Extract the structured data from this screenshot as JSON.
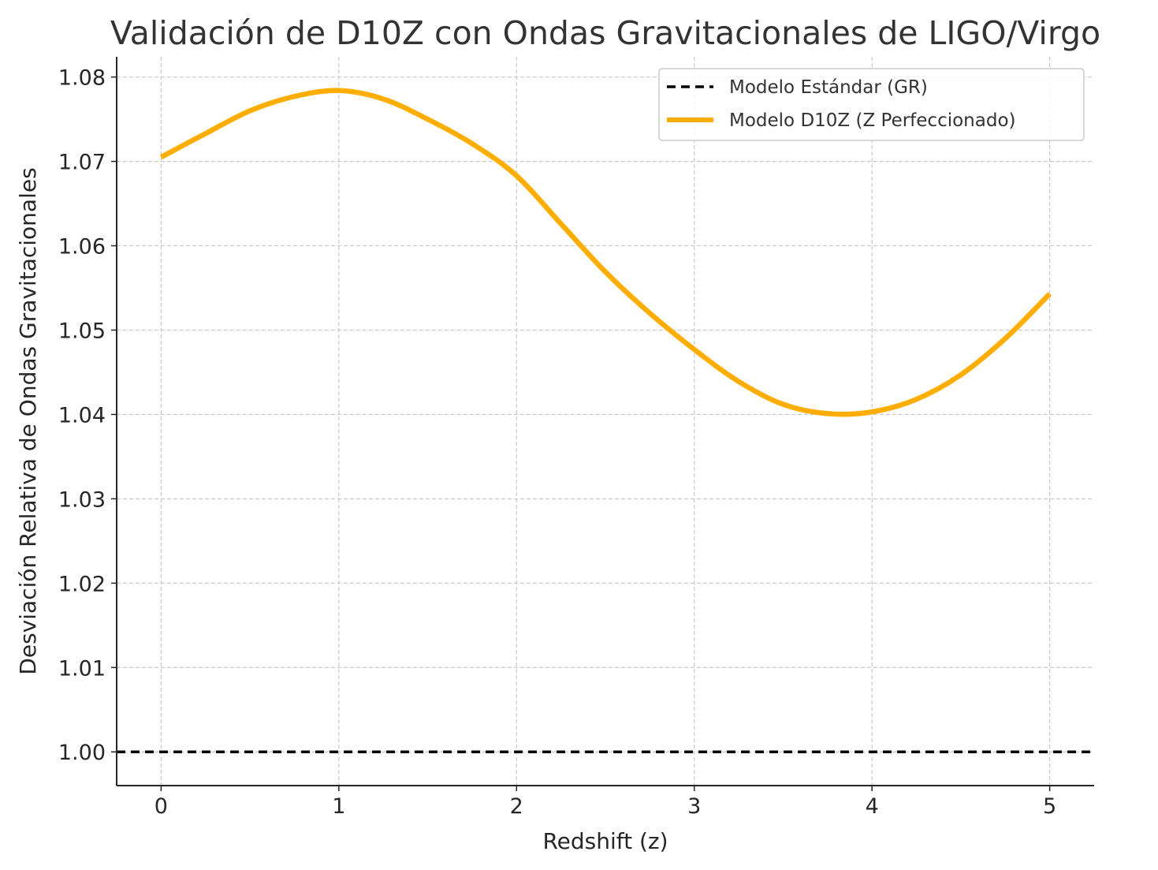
{
  "chart_data": {
    "type": "line",
    "title": "Validación de D10Z con Ondas Gravitacionales de LIGO/Virgo",
    "xlabel": "Redshift (z)",
    "ylabel": "Desviación Relativa de Ondas Gravitacionales",
    "xlim": [
      -0.25,
      5.25
    ],
    "ylim": [
      0.996,
      1.0824
    ],
    "x_ticks": [
      0,
      1,
      2,
      3,
      4,
      5
    ],
    "x_tick_labels": [
      "0",
      "1",
      "2",
      "3",
      "4",
      "5"
    ],
    "y_ticks": [
      1.0,
      1.01,
      1.02,
      1.03,
      1.04,
      1.05,
      1.06,
      1.07,
      1.08
    ],
    "y_tick_labels": [
      "1.00",
      "1.01",
      "1.02",
      "1.03",
      "1.04",
      "1.05",
      "1.06",
      "1.07",
      "1.08"
    ],
    "grid": true,
    "legend_position": "top-right",
    "series": [
      {
        "name": "Modelo Estándar (GR)",
        "color": "#000000",
        "style": "dashed",
        "x": [
          -0.25,
          5.25
        ],
        "y": [
          1.0,
          1.0
        ]
      },
      {
        "name": "Modelo D10Z (Z Perfeccionado)",
        "color": "#ffae00",
        "style": "solid",
        "x": [
          0.0,
          0.25,
          0.5,
          0.75,
          1.0,
          1.25,
          1.5,
          1.75,
          2.0,
          2.25,
          2.5,
          2.75,
          3.0,
          3.25,
          3.5,
          3.75,
          4.0,
          4.25,
          4.5,
          4.75,
          5.0
        ],
        "y": [
          1.0705,
          1.0733,
          1.076,
          1.0777,
          1.0784,
          1.0774,
          1.075,
          1.0721,
          1.0683,
          1.0626,
          1.0569,
          1.052,
          1.0477,
          1.0439,
          1.0412,
          1.0401,
          1.0403,
          1.0418,
          1.0447,
          1.049,
          1.0543
        ]
      }
    ]
  }
}
